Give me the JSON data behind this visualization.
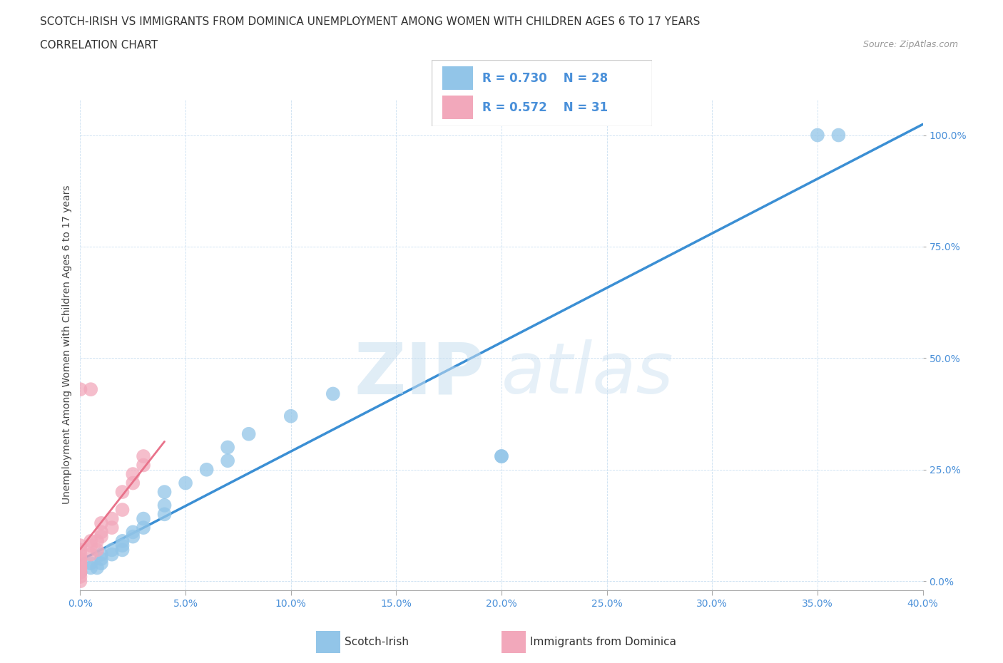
{
  "title_line1": "SCOTCH-IRISH VS IMMIGRANTS FROM DOMINICA UNEMPLOYMENT AMONG WOMEN WITH CHILDREN AGES 6 TO 17 YEARS",
  "title_line2": "CORRELATION CHART",
  "source_text": "Source: ZipAtlas.com",
  "ylabel": "Unemployment Among Women with Children Ages 6 to 17 years",
  "x_range": [
    0,
    0.4
  ],
  "y_range": [
    -0.02,
    1.08
  ],
  "watermark_zip": "ZIP",
  "watermark_atlas": "atlas",
  "scotch_irish_color": "#92C5E8",
  "dominica_color": "#F2A8BB",
  "si_line_color": "#3B8FD4",
  "dom_line_color": "#E8728A",
  "scotch_irish_scatter": [
    [
      0.0,
      0.02
    ],
    [
      0.005,
      0.03
    ],
    [
      0.005,
      0.04
    ],
    [
      0.008,
      0.03
    ],
    [
      0.01,
      0.04
    ],
    [
      0.01,
      0.05
    ],
    [
      0.01,
      0.06
    ],
    [
      0.015,
      0.06
    ],
    [
      0.015,
      0.07
    ],
    [
      0.02,
      0.07
    ],
    [
      0.02,
      0.08
    ],
    [
      0.02,
      0.09
    ],
    [
      0.025,
      0.1
    ],
    [
      0.025,
      0.11
    ],
    [
      0.03,
      0.12
    ],
    [
      0.03,
      0.14
    ],
    [
      0.04,
      0.15
    ],
    [
      0.04,
      0.17
    ],
    [
      0.04,
      0.2
    ],
    [
      0.05,
      0.22
    ],
    [
      0.06,
      0.25
    ],
    [
      0.07,
      0.27
    ],
    [
      0.07,
      0.3
    ],
    [
      0.08,
      0.33
    ],
    [
      0.1,
      0.37
    ],
    [
      0.12,
      0.42
    ],
    [
      0.2,
      0.28
    ],
    [
      0.2,
      0.28
    ],
    [
      0.35,
      1.0
    ],
    [
      0.36,
      1.0
    ]
  ],
  "dominica_scatter": [
    [
      0.0,
      0.0
    ],
    [
      0.0,
      0.01
    ],
    [
      0.0,
      0.02
    ],
    [
      0.0,
      0.02
    ],
    [
      0.0,
      0.03
    ],
    [
      0.0,
      0.03
    ],
    [
      0.0,
      0.04
    ],
    [
      0.0,
      0.04
    ],
    [
      0.0,
      0.05
    ],
    [
      0.0,
      0.05
    ],
    [
      0.0,
      0.06
    ],
    [
      0.0,
      0.07
    ],
    [
      0.0,
      0.08
    ],
    [
      0.005,
      0.06
    ],
    [
      0.005,
      0.08
    ],
    [
      0.005,
      0.09
    ],
    [
      0.008,
      0.07
    ],
    [
      0.008,
      0.09
    ],
    [
      0.01,
      0.1
    ],
    [
      0.01,
      0.11
    ],
    [
      0.01,
      0.13
    ],
    [
      0.015,
      0.12
    ],
    [
      0.015,
      0.14
    ],
    [
      0.02,
      0.16
    ],
    [
      0.02,
      0.2
    ],
    [
      0.025,
      0.22
    ],
    [
      0.025,
      0.24
    ],
    [
      0.03,
      0.26
    ],
    [
      0.03,
      0.28
    ],
    [
      0.005,
      0.43
    ],
    [
      0.0,
      0.43
    ]
  ]
}
